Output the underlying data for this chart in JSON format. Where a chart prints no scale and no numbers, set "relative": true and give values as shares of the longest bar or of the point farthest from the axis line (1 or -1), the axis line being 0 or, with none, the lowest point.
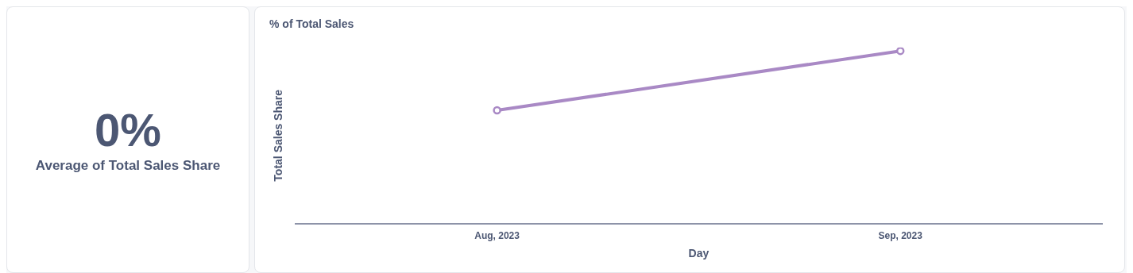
{
  "chart_data": [
    {
      "type": "other",
      "annotations": [
        "0%",
        "Average of Total Sales Share"
      ]
    },
    {
      "type": "line",
      "title": "% of Total Sales",
      "xlabel": "Day",
      "ylabel": "Total Sales Share",
      "categories": [
        "Aug, 2023",
        "Sep, 2023"
      ],
      "relative": true,
      "series": [
        {
          "color": "#a989c5",
          "values": [
            0.656,
            1
          ]
        }
      ],
      "marker": "circle",
      "legend": false
    }
  ]
}
